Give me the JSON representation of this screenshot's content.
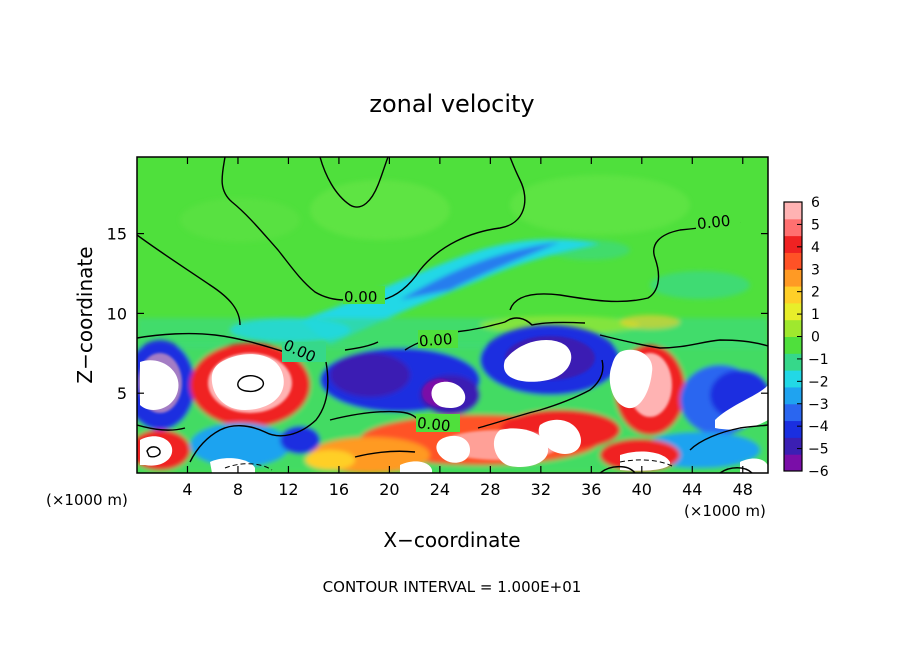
{
  "chart_data": {
    "type": "heatmap",
    "title": "zonal velocity",
    "xlabel": "X−coordinate",
    "ylabel": "Z−coordinate",
    "x_unit_left": "(×1000 m)",
    "x_unit_right": "(×1000 m)",
    "footer": "CONTOUR INTERVAL = 1.000E+01",
    "xlim": [
      0,
      50
    ],
    "ylim": [
      0,
      19.8
    ],
    "x_ticks": [
      "4",
      "8",
      "12",
      "16",
      "20",
      "24",
      "28",
      "32",
      "36",
      "40",
      "44",
      "48"
    ],
    "y_ticks": [
      "5",
      "10",
      "15"
    ],
    "colorbar": {
      "range": [
        -6,
        6
      ],
      "tick_labels": [
        "6",
        "5",
        "4",
        "3",
        "2",
        "1",
        "0",
        "−1",
        "−2",
        "−3",
        "−4",
        "−5",
        "−6"
      ],
      "colors": [
        "#7a0ea8",
        "#3b1fb3",
        "#1a2fe0",
        "#2a66f0",
        "#1fa3f0",
        "#22d8e6",
        "#36d88a",
        "#4fe03c",
        "#9fe82e",
        "#e8ee2a",
        "#ffcf28",
        "#ff9a24",
        "#ff5226",
        "#f02222",
        "#ff7070",
        "#ffb3b3"
      ]
    },
    "contour_labels": [
      "0.00",
      "0.00",
      "0.00",
      "0.00",
      "0.00"
    ]
  }
}
